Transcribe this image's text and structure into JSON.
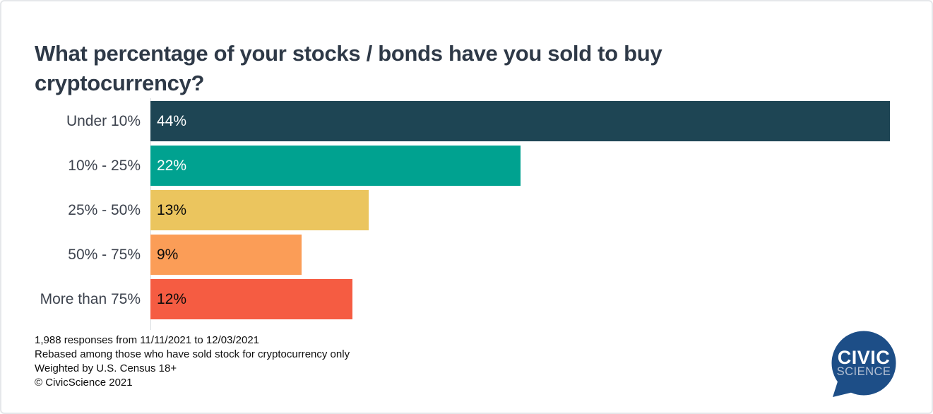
{
  "header": {
    "title": "What percentage of your stocks / bonds have you sold to buy\ncryptocurrency?"
  },
  "chart_data": {
    "type": "bar",
    "orientation": "horizontal",
    "title": "What percentage of your stocks / bonds have you sold to buy cryptocurrency?",
    "categories": [
      "Under 10%",
      "10% - 25%",
      "25% - 50%",
      "50% - 75%",
      "More than 75%"
    ],
    "values": [
      44,
      22,
      13,
      9,
      12
    ],
    "value_labels": [
      "44%",
      "22%",
      "13%",
      "9%",
      "12%"
    ],
    "bar_colors": [
      "#1e4554",
      "#00a290",
      "#ebc55e",
      "#fb9d57",
      "#f55c42"
    ],
    "value_label_colors": [
      "#ffffff",
      "#ffffff",
      "#0c0c0c",
      "#0c0c0c",
      "#0c0c0c"
    ],
    "xlim": [
      0,
      44
    ],
    "grid": false,
    "legend": "none",
    "axis_line_color": "#d8dbdf"
  },
  "footnotes": {
    "lines": [
      "1,988 responses from 11/11/2021 to 12/03/2021",
      "Rebased among those who have sold stock for cryptocurrency only",
      "Weighted by U.S. Census 18+",
      "© CivicScience 2021"
    ]
  },
  "logo": {
    "line1": "CIVIC",
    "line2": "SCIENCE",
    "bubble_color": "#1d4e87",
    "text_color": "#ffffff",
    "subtext_color": "#b5c1d3"
  }
}
